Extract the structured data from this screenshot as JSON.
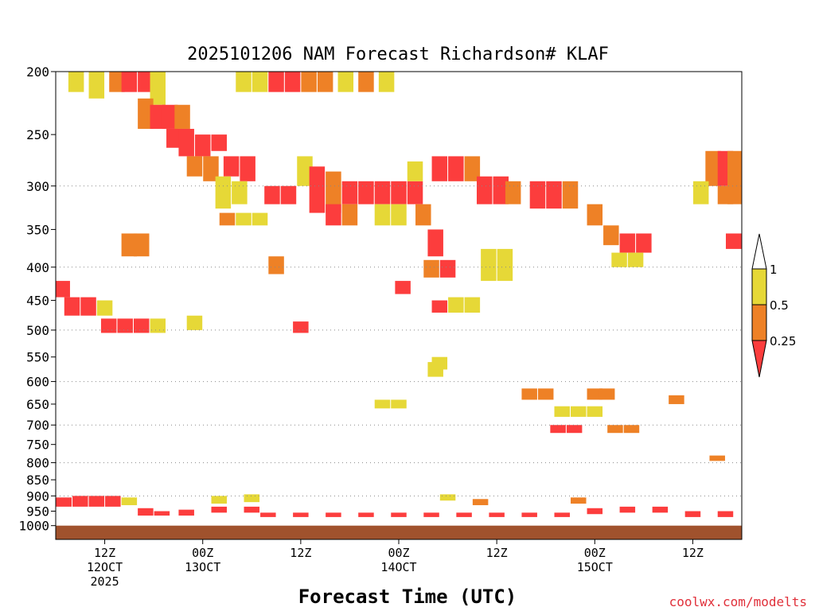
{
  "chart_data": {
    "type": "heatmap",
    "title": "2025101206 NAM Forecast Richardson# KLAF",
    "xlabel": "Forecast Time (UTC)",
    "credit": "coolwx.com/modelts",
    "y_axis": {
      "scale": "log",
      "inverted": true,
      "unit": "hPa",
      "range": [
        200,
        1050
      ],
      "ticks": [
        200,
        250,
        300,
        350,
        400,
        450,
        500,
        550,
        600,
        650,
        700,
        750,
        800,
        850,
        900,
        950,
        1000
      ],
      "gridlines": [
        300,
        400,
        500,
        600,
        700,
        800,
        900
      ]
    },
    "x_axis": {
      "range_hours": [
        0,
        84
      ],
      "ticks": [
        {
          "hour": 6,
          "label": "12Z",
          "sub": "12OCT",
          "sub2": "2025"
        },
        {
          "hour": 18,
          "label": "00Z",
          "sub": "13OCT",
          "sub2": ""
        },
        {
          "hour": 30,
          "label": "12Z",
          "sub": "",
          "sub2": ""
        },
        {
          "hour": 42,
          "label": "00Z",
          "sub": "14OCT",
          "sub2": ""
        },
        {
          "hour": 54,
          "label": "12Z",
          "sub": "",
          "sub2": ""
        },
        {
          "hour": 66,
          "label": "00Z",
          "sub": "15OCT",
          "sub2": ""
        },
        {
          "hour": 78,
          "label": "12Z",
          "sub": "",
          "sub2": ""
        }
      ]
    },
    "legend": {
      "placement": "right",
      "bins": [
        {
          "label": "1",
          "color": "#ffffff",
          "range": "> 1"
        },
        {
          "label": "0.5",
          "color": "#e6d837",
          "range": "0.5 - 1"
        },
        {
          "label": "0.25",
          "color": "#ee8126",
          "range": "0.25 - 0.5"
        },
        {
          "label": "",
          "color": "#fc3d3d",
          "range": "< 0.25"
        }
      ]
    },
    "ground_color": "#a0522d",
    "colors": {
      "yellow": "#e6d837",
      "orange": "#ee8126",
      "red": "#fc3d3d"
    },
    "cells": [
      {
        "h": 2.5,
        "p1": 200,
        "p2": 215,
        "c": "yellow"
      },
      {
        "h": 5,
        "p1": 200,
        "p2": 220,
        "c": "yellow"
      },
      {
        "h": 7.5,
        "p1": 200,
        "p2": 215,
        "c": "orange"
      },
      {
        "h": 9,
        "p1": 200,
        "p2": 215,
        "c": "red"
      },
      {
        "h": 11,
        "p1": 200,
        "p2": 215,
        "c": "red"
      },
      {
        "h": 12.5,
        "p1": 200,
        "p2": 225,
        "c": "yellow"
      },
      {
        "h": 11,
        "p1": 220,
        "p2": 245,
        "c": "orange"
      },
      {
        "h": 12.5,
        "p1": 225,
        "p2": 245,
        "c": "red"
      },
      {
        "h": 14,
        "p1": 225,
        "p2": 245,
        "c": "red"
      },
      {
        "h": 15.5,
        "p1": 225,
        "p2": 245,
        "c": "orange"
      },
      {
        "h": 14.5,
        "p1": 245,
        "p2": 262,
        "c": "red"
      },
      {
        "h": 16,
        "p1": 245,
        "p2": 270,
        "c": "red"
      },
      {
        "h": 18,
        "p1": 250,
        "p2": 270,
        "c": "red"
      },
      {
        "h": 20,
        "p1": 250,
        "p2": 265,
        "c": "red"
      },
      {
        "h": 17,
        "p1": 270,
        "p2": 290,
        "c": "orange"
      },
      {
        "h": 19,
        "p1": 270,
        "p2": 295,
        "c": "orange"
      },
      {
        "h": 21.5,
        "p1": 270,
        "p2": 290,
        "c": "red"
      },
      {
        "h": 23.5,
        "p1": 270,
        "p2": 295,
        "c": "red"
      },
      {
        "h": 20.5,
        "p1": 290,
        "p2": 325,
        "c": "yellow"
      },
      {
        "h": 22.5,
        "p1": 295,
        "p2": 320,
        "c": "yellow"
      },
      {
        "h": 26.5,
        "p1": 300,
        "p2": 320,
        "c": "red"
      },
      {
        "h": 28.5,
        "p1": 300,
        "p2": 320,
        "c": "red"
      },
      {
        "h": 21,
        "p1": 330,
        "p2": 345,
        "c": "orange"
      },
      {
        "h": 23,
        "p1": 330,
        "p2": 345,
        "c": "yellow"
      },
      {
        "h": 25,
        "p1": 330,
        "p2": 345,
        "c": "yellow"
      },
      {
        "h": 23,
        "p1": 200,
        "p2": 215,
        "c": "yellow"
      },
      {
        "h": 25,
        "p1": 200,
        "p2": 215,
        "c": "yellow"
      },
      {
        "h": 27,
        "p1": 200,
        "p2": 215,
        "c": "red"
      },
      {
        "h": 29,
        "p1": 200,
        "p2": 215,
        "c": "red"
      },
      {
        "h": 31,
        "p1": 200,
        "p2": 215,
        "c": "orange"
      },
      {
        "h": 33,
        "p1": 200,
        "p2": 215,
        "c": "orange"
      },
      {
        "h": 35.5,
        "p1": 200,
        "p2": 215,
        "c": "yellow"
      },
      {
        "h": 38,
        "p1": 200,
        "p2": 215,
        "c": "orange"
      },
      {
        "h": 40.5,
        "p1": 200,
        "p2": 215,
        "c": "yellow"
      },
      {
        "h": 30.5,
        "p1": 270,
        "p2": 300,
        "c": "yellow"
      },
      {
        "h": 32,
        "p1": 280,
        "p2": 330,
        "c": "red"
      },
      {
        "h": 34,
        "p1": 285,
        "p2": 330,
        "c": "orange"
      },
      {
        "h": 36,
        "p1": 295,
        "p2": 320,
        "c": "red"
      },
      {
        "h": 38,
        "p1": 295,
        "p2": 320,
        "c": "red"
      },
      {
        "h": 40,
        "p1": 295,
        "p2": 320,
        "c": "red"
      },
      {
        "h": 42,
        "p1": 295,
        "p2": 320,
        "c": "red"
      },
      {
        "h": 44,
        "p1": 295,
        "p2": 320,
        "c": "red"
      },
      {
        "h": 34,
        "p1": 320,
        "p2": 345,
        "c": "red"
      },
      {
        "h": 36,
        "p1": 320,
        "p2": 345,
        "c": "orange"
      },
      {
        "h": 40,
        "p1": 320,
        "p2": 345,
        "c": "yellow"
      },
      {
        "h": 42,
        "p1": 320,
        "p2": 345,
        "c": "yellow"
      },
      {
        "h": 45,
        "p1": 320,
        "p2": 345,
        "c": "orange"
      },
      {
        "h": 47,
        "p1": 270,
        "p2": 295,
        "c": "red"
      },
      {
        "h": 49,
        "p1": 270,
        "p2": 295,
        "c": "red"
      },
      {
        "h": 51,
        "p1": 270,
        "p2": 295,
        "c": "orange"
      },
      {
        "h": 44,
        "p1": 275,
        "p2": 295,
        "c": "yellow"
      },
      {
        "h": 52.5,
        "p1": 290,
        "p2": 320,
        "c": "red"
      },
      {
        "h": 54.5,
        "p1": 290,
        "p2": 320,
        "c": "red"
      },
      {
        "h": 56,
        "p1": 295,
        "p2": 320,
        "c": "orange"
      },
      {
        "h": 59,
        "p1": 295,
        "p2": 325,
        "c": "red"
      },
      {
        "h": 61,
        "p1": 295,
        "p2": 325,
        "c": "red"
      },
      {
        "h": 63,
        "p1": 295,
        "p2": 325,
        "c": "orange"
      },
      {
        "h": 46.5,
        "p1": 350,
        "p2": 385,
        "c": "red"
      },
      {
        "h": 48,
        "p1": 390,
        "p2": 415,
        "c": "red"
      },
      {
        "h": 46,
        "p1": 390,
        "p2": 415,
        "c": "orange"
      },
      {
        "h": 53,
        "p1": 375,
        "p2": 420,
        "c": "yellow"
      },
      {
        "h": 55,
        "p1": 375,
        "p2": 420,
        "c": "yellow"
      },
      {
        "h": 47,
        "p1": 450,
        "p2": 470,
        "c": "red"
      },
      {
        "h": 49,
        "p1": 445,
        "p2": 470,
        "c": "yellow"
      },
      {
        "h": 51,
        "p1": 445,
        "p2": 470,
        "c": "yellow"
      },
      {
        "h": 66,
        "p1": 320,
        "p2": 345,
        "c": "orange"
      },
      {
        "h": 68,
        "p1": 345,
        "p2": 370,
        "c": "orange"
      },
      {
        "h": 70,
        "p1": 355,
        "p2": 380,
        "c": "red"
      },
      {
        "h": 72,
        "p1": 355,
        "p2": 380,
        "c": "red"
      },
      {
        "h": 69,
        "p1": 380,
        "p2": 400,
        "c": "yellow"
      },
      {
        "h": 71,
        "p1": 380,
        "p2": 400,
        "c": "yellow"
      },
      {
        "h": 80.5,
        "p1": 265,
        "p2": 300,
        "c": "orange"
      },
      {
        "h": 82,
        "p1": 265,
        "p2": 300,
        "c": "red"
      },
      {
        "h": 83.2,
        "p1": 265,
        "p2": 320,
        "c": "orange"
      },
      {
        "h": 79,
        "p1": 295,
        "p2": 320,
        "c": "yellow"
      },
      {
        "h": 82,
        "p1": 300,
        "p2": 320,
        "c": "orange"
      },
      {
        "h": 83,
        "p1": 355,
        "p2": 375,
        "c": "red"
      },
      {
        "h": 0.8,
        "p1": 420,
        "p2": 445,
        "c": "red"
      },
      {
        "h": 2,
        "p1": 445,
        "p2": 475,
        "c": "red"
      },
      {
        "h": 4,
        "p1": 445,
        "p2": 475,
        "c": "red"
      },
      {
        "h": 6,
        "p1": 450,
        "p2": 475,
        "c": "yellow"
      },
      {
        "h": 6.5,
        "p1": 480,
        "p2": 505,
        "c": "red"
      },
      {
        "h": 8.5,
        "p1": 480,
        "p2": 505,
        "c": "red"
      },
      {
        "h": 10.5,
        "p1": 480,
        "p2": 505,
        "c": "red"
      },
      {
        "h": 12.5,
        "p1": 480,
        "p2": 505,
        "c": "yellow"
      },
      {
        "h": 9,
        "p1": 355,
        "p2": 385,
        "c": "orange"
      },
      {
        "h": 10.5,
        "p1": 355,
        "p2": 385,
        "c": "orange"
      },
      {
        "h": 17,
        "p1": 475,
        "p2": 500,
        "c": "yellow"
      },
      {
        "h": 30,
        "p1": 485,
        "p2": 505,
        "c": "red"
      },
      {
        "h": 42.5,
        "p1": 420,
        "p2": 440,
        "c": "red"
      },
      {
        "h": 27,
        "p1": 385,
        "p2": 410,
        "c": "orange"
      },
      {
        "h": 46.5,
        "p1": 560,
        "p2": 590,
        "c": "yellow"
      },
      {
        "h": 47,
        "p1": 550,
        "p2": 575,
        "c": "yellow"
      },
      {
        "h": 40,
        "p1": 640,
        "p2": 660,
        "c": "yellow"
      },
      {
        "h": 42,
        "p1": 640,
        "p2": 660,
        "c": "yellow"
      },
      {
        "h": 58,
        "p1": 615,
        "p2": 640,
        "c": "orange"
      },
      {
        "h": 60,
        "p1": 615,
        "p2": 640,
        "c": "orange"
      },
      {
        "h": 62,
        "p1": 655,
        "p2": 680,
        "c": "yellow"
      },
      {
        "h": 64,
        "p1": 655,
        "p2": 680,
        "c": "yellow"
      },
      {
        "h": 66,
        "p1": 655,
        "p2": 680,
        "c": "yellow"
      },
      {
        "h": 61.5,
        "p1": 700,
        "p2": 720,
        "c": "red"
      },
      {
        "h": 63.5,
        "p1": 700,
        "p2": 720,
        "c": "red"
      },
      {
        "h": 66,
        "p1": 615,
        "p2": 640,
        "c": "orange"
      },
      {
        "h": 67.5,
        "p1": 615,
        "p2": 640,
        "c": "orange"
      },
      {
        "h": 68.5,
        "p1": 700,
        "p2": 720,
        "c": "orange"
      },
      {
        "h": 70.5,
        "p1": 700,
        "p2": 720,
        "c": "orange"
      },
      {
        "h": 76,
        "p1": 630,
        "p2": 650,
        "c": "orange"
      },
      {
        "h": 81,
        "p1": 780,
        "p2": 795,
        "c": "orange"
      },
      {
        "h": 1,
        "p1": 905,
        "p2": 935,
        "c": "red"
      },
      {
        "h": 3,
        "p1": 900,
        "p2": 935,
        "c": "red"
      },
      {
        "h": 5,
        "p1": 900,
        "p2": 935,
        "c": "red"
      },
      {
        "h": 7,
        "p1": 900,
        "p2": 935,
        "c": "red"
      },
      {
        "h": 9,
        "p1": 905,
        "p2": 930,
        "c": "yellow"
      },
      {
        "h": 11,
        "p1": 940,
        "p2": 965,
        "c": "red"
      },
      {
        "h": 13,
        "p1": 950,
        "p2": 965,
        "c": "red"
      },
      {
        "h": 16,
        "p1": 945,
        "p2": 965,
        "c": "red"
      },
      {
        "h": 20,
        "p1": 935,
        "p2": 955,
        "c": "red"
      },
      {
        "h": 24,
        "p1": 935,
        "p2": 955,
        "c": "red"
      },
      {
        "h": 26,
        "p1": 955,
        "p2": 970,
        "c": "red"
      },
      {
        "h": 30,
        "p1": 955,
        "p2": 970,
        "c": "red"
      },
      {
        "h": 34,
        "p1": 955,
        "p2": 970,
        "c": "red"
      },
      {
        "h": 38,
        "p1": 955,
        "p2": 970,
        "c": "red"
      },
      {
        "h": 42,
        "p1": 955,
        "p2": 970,
        "c": "red"
      },
      {
        "h": 46,
        "p1": 955,
        "p2": 970,
        "c": "red"
      },
      {
        "h": 50,
        "p1": 955,
        "p2": 970,
        "c": "red"
      },
      {
        "h": 54,
        "p1": 955,
        "p2": 970,
        "c": "red"
      },
      {
        "h": 58,
        "p1": 955,
        "p2": 970,
        "c": "red"
      },
      {
        "h": 62,
        "p1": 955,
        "p2": 970,
        "c": "red"
      },
      {
        "h": 66,
        "p1": 940,
        "p2": 960,
        "c": "red"
      },
      {
        "h": 70,
        "p1": 935,
        "p2": 955,
        "c": "red"
      },
      {
        "h": 74,
        "p1": 935,
        "p2": 955,
        "c": "red"
      },
      {
        "h": 78,
        "p1": 950,
        "p2": 970,
        "c": "red"
      },
      {
        "h": 82,
        "p1": 950,
        "p2": 970,
        "c": "red"
      },
      {
        "h": 20,
        "p1": 900,
        "p2": 925,
        "c": "yellow"
      },
      {
        "h": 24,
        "p1": 895,
        "p2": 920,
        "c": "yellow"
      },
      {
        "h": 48,
        "p1": 895,
        "p2": 915,
        "c": "yellow"
      },
      {
        "h": 52,
        "p1": 910,
        "p2": 930,
        "c": "orange"
      },
      {
        "h": 64,
        "p1": 905,
        "p2": 925,
        "c": "orange"
      }
    ]
  }
}
